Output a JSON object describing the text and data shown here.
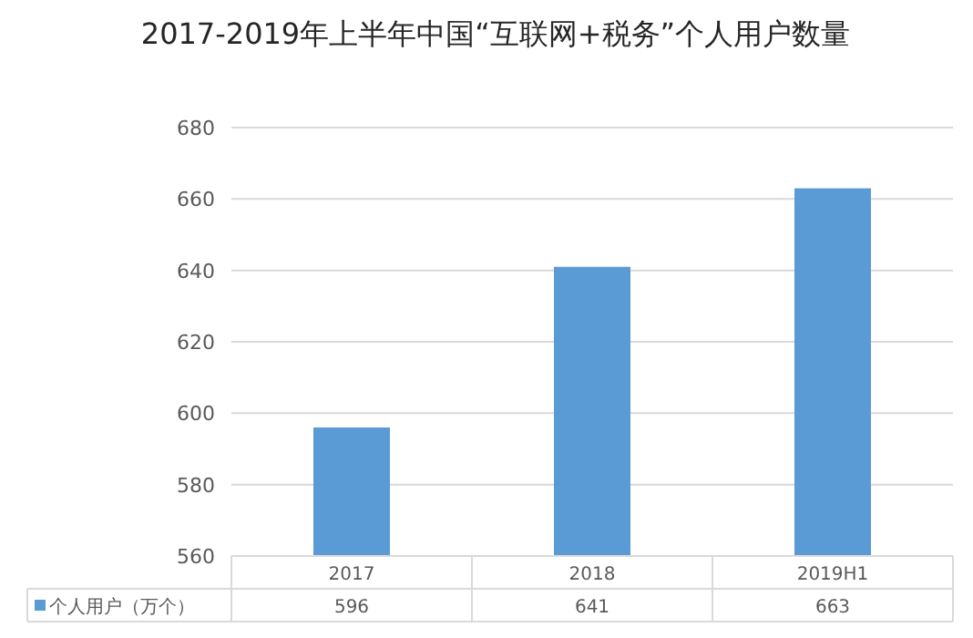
{
  "chart_data": {
    "type": "bar",
    "title": "2017-2019年上半年中国“互联网+税务”个人用户数量",
    "categories": [
      "2017",
      "2018",
      "2019H1"
    ],
    "series": [
      {
        "name": "个人用户（万个）",
        "color": "#5b9bd5",
        "values": [
          596,
          641,
          663
        ]
      }
    ],
    "ylim": [
      560,
      680
    ],
    "yticks": [
      560,
      580,
      600,
      620,
      640,
      660,
      680
    ],
    "grid": "y",
    "data_labels": true,
    "legend": "bottom"
  }
}
